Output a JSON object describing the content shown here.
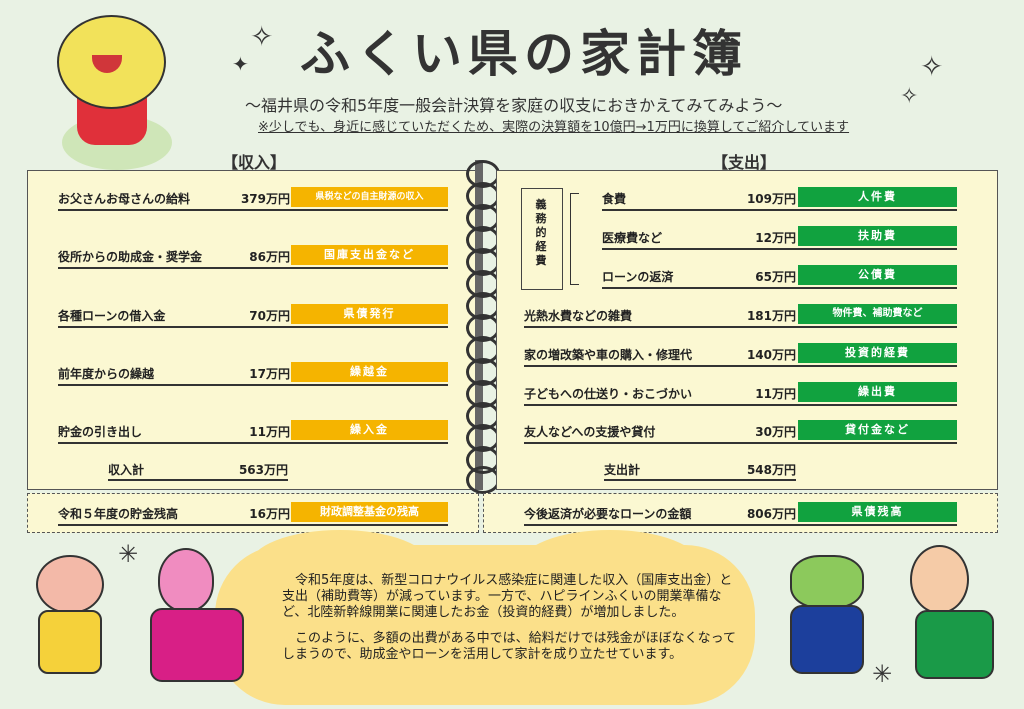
{
  "title": "ふくい県の家計簿",
  "subtitle": "～福井県の令和5年度一般会計決算を家庭の収支におきかえてみてみよう～",
  "note": "※少しでも、身近に感じていただくため、実際の決算額を10億円→1万円に換算してご紹介しています",
  "income": {
    "heading": "【収入】",
    "rows": [
      {
        "label": "お父さんお母さんの給料",
        "amount": "379万円",
        "tag": "県税などの自主財源の収入"
      },
      {
        "label": "役所からの助成金・奨学金",
        "amount": "86万円",
        "tag": "国庫支出金など"
      },
      {
        "label": "各種ローンの借入金",
        "amount": "70万円",
        "tag": "県債発行"
      },
      {
        "label": "前年度からの繰越",
        "amount": "17万円",
        "tag": "繰越金"
      },
      {
        "label": "貯金の引き出し",
        "amount": "11万円",
        "tag": "繰入金"
      }
    ],
    "total_label": "収入計",
    "total_amount": "563万円",
    "savings": {
      "label": "令和５年度の貯金残高",
      "amount": "16万円",
      "tag": "財政調整基金の残高"
    }
  },
  "expense": {
    "heading": "【支出】",
    "mandatory_label": "義務的経費",
    "rows": [
      {
        "label": "食費",
        "amount": "109万円",
        "tag": "人件費"
      },
      {
        "label": "医療費など",
        "amount": "12万円",
        "tag": "扶助費"
      },
      {
        "label": "ローンの返済",
        "amount": "65万円",
        "tag": "公債費"
      },
      {
        "label": "光熱水費などの雑費",
        "amount": "181万円",
        "tag": "物件費、補助費など"
      },
      {
        "label": "家の増改築や車の購入・修理代",
        "amount": "140万円",
        "tag": "投資的経費"
      },
      {
        "label": "子どもへの仕送り・おこづかい",
        "amount": "11万円",
        "tag": "繰出費"
      },
      {
        "label": "友人などへの支援や貸付",
        "amount": "30万円",
        "tag": "貸付金など"
      }
    ],
    "total_label": "支出計",
    "total_amount": "548万円",
    "debt": {
      "label": "今後返済が必要なローンの金額",
      "amount": "806万円",
      "tag": "県債残高"
    }
  },
  "cloud": {
    "p1": "令和5年度は、新型コロナウイルス感染症に関連した収入（国庫支出金）と支出（補助費等）が減っています。一方で、ハピラインふくいの開業準備など、北陸新幹線開業に関連したお金（投資的経費）が増加しました。",
    "p2": "このように、多額の出費がある中では、給料だけでは残金がほぼなくなってしまうので、助成金やローンを活用して家計を成り立たせています。"
  },
  "colors": {
    "income_tag": "#f5b400",
    "expense_tag": "#11a23f",
    "panel": "#fbf8d2",
    "cloud": "#fbe08a"
  }
}
